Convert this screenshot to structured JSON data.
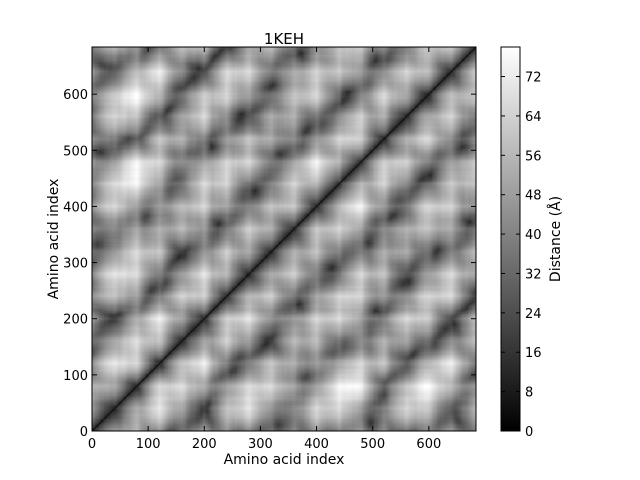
{
  "chart_data": {
    "type": "heatmap",
    "title": "1KEH",
    "xlabel": "Amino acid index",
    "ylabel": "Amino acid index",
    "xlim": [
      0,
      684
    ],
    "ylim": [
      0,
      684
    ],
    "x_ticks": [
      "0",
      "100",
      "200",
      "300",
      "400",
      "500",
      "600"
    ],
    "y_ticks": [
      "0",
      "100",
      "200",
      "300",
      "400",
      "500",
      "600"
    ],
    "colorbar": {
      "label": "Distance (Å)",
      "range": [
        0,
        78
      ],
      "ticks": [
        "0",
        "8",
        "16",
        "24",
        "32",
        "40",
        "48",
        "56",
        "64",
        "72"
      ],
      "colormap": "gray"
    },
    "matrix_description_values": {
      "n_residues": 684,
      "diagonal_distance": 0,
      "max_distance": 78
    }
  },
  "colors": {
    "low": "#000000",
    "high": "#ffffff",
    "frame": "#000000"
  }
}
